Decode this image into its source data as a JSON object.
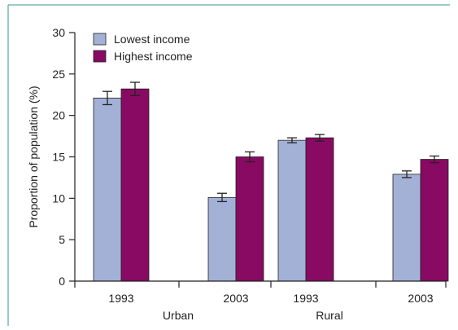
{
  "chart_data": {
    "type": "bar",
    "title": "",
    "xlabel": "",
    "ylabel": "Proportion of population (%)",
    "ylim": [
      0,
      30
    ],
    "yticks": [
      0,
      5,
      10,
      15,
      20,
      25,
      30
    ],
    "grid": false,
    "legend_position": "top-left",
    "categories": [
      "1993",
      "2003",
      "1993",
      "2003"
    ],
    "groups": [
      {
        "label": "Urban",
        "categories": [
          "1993",
          "2003"
        ]
      },
      {
        "label": "Rural",
        "categories": [
          "1993",
          "2003"
        ]
      }
    ],
    "series": [
      {
        "name": "Lowest income",
        "color": "#a3b1d6",
        "values": [
          22.1,
          10.1,
          17.0,
          12.9
        ],
        "error": [
          0.8,
          0.5,
          0.3,
          0.4
        ]
      },
      {
        "name": "Highest income",
        "color": "#880a62",
        "values": [
          23.2,
          15.0,
          17.3,
          14.7
        ],
        "error": [
          0.8,
          0.6,
          0.4,
          0.4
        ]
      }
    ]
  },
  "colors": {
    "frame": "#3a9688",
    "axis": "#222222"
  }
}
